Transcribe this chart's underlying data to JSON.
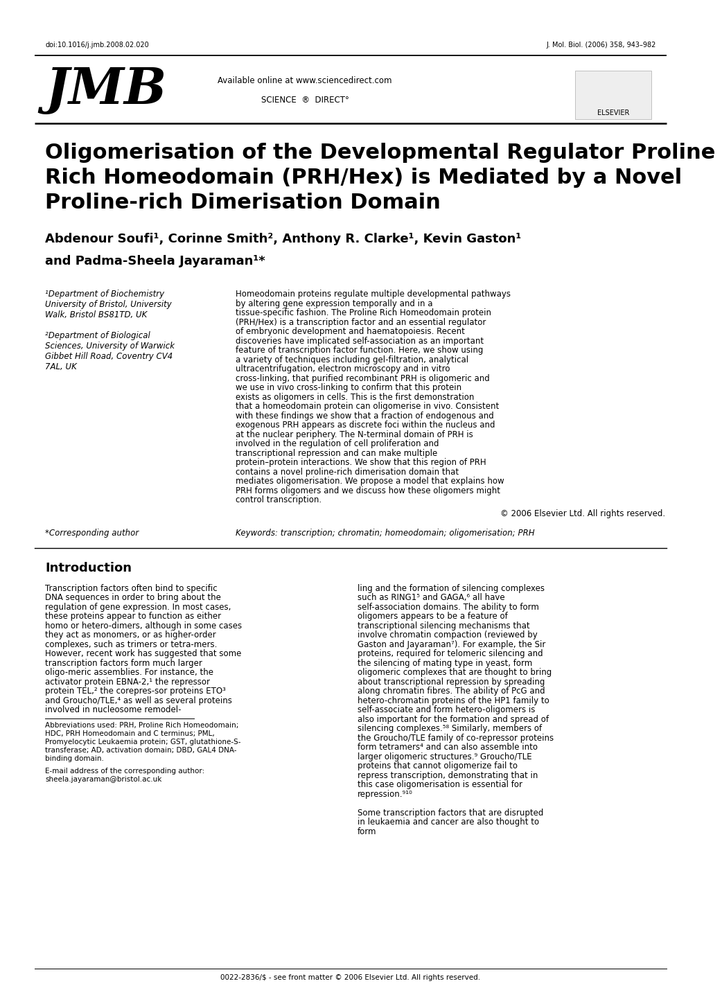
{
  "page_width": 9.92,
  "page_height": 14.03,
  "bg_color": "#ffffff",
  "doi_text": "doi:10.1016/j.jmb.2008.02.020",
  "journal_ref": "J. Mol. Biol. (2006) 358, 943–982",
  "jmb_logo": "JMB",
  "available_online": "Available online at www.sciencedirect.com",
  "science_direct": "SCIENCE  ®  DIRECT°",
  "elsevier_text": "ELSEVIER",
  "title_line1": "Oligomerisation of the Developmental Regulator Proline",
  "title_line2": "Rich Homeodomain (PRH/Hex) is Mediated by a Novel",
  "title_line3": "Proline-rich Dimerisation Domain",
  "authors_line1": "Abdenour Soufi¹, Corinne Smith², Anthony R. Clarke¹, Kevin Gaston¹",
  "authors_line2": "and Padma-Sheela Jayaraman¹*",
  "affil1_lines": [
    "¹Department of Biochemistry",
    "University of Bristol, University",
    "Walk, Bristol BS81TD, UK"
  ],
  "affil2_lines": [
    "²Department of Biological",
    "Sciences, University of Warwick",
    "Gibbet Hill Road, Coventry CV4",
    "7AL, UK"
  ],
  "abstract_text": "Homeodomain proteins regulate multiple developmental pathways by altering gene expression temporally and in a tissue-specific fashion. The Proline Rich Homeodomain protein (PRH/Hex) is a transcription factor and an essential regulator of embryonic development and haematopoiesis. Recent discoveries have implicated self-association as an important feature of transcription factor function. Here, we show using a variety of techniques including gel-filtration, analytical ultracentrifugation, electron microscopy and in vitro cross-linking, that purified recombinant PRH is oligomeric and we use in vivo cross-linking to confirm that this protein exists as oligomers in cells. This is the first demonstration that a homeodomain protein can oligomerise in vivo. Consistent with these findings we show that a fraction of endogenous and exogenous PRH appears as discrete foci within the nucleus and at the nuclear periphery. The N-terminal domain of PRH is involved in the regulation of cell proliferation and transcriptional repression and can make multiple protein–protein interactions. We show that this region of PRH contains a novel proline-rich dimerisation domain that mediates oligomerisation. We propose a model that explains how PRH forms oligomers and we discuss how these oligomers might control transcription.",
  "copyright": "© 2006 Elsevier Ltd. All rights reserved.",
  "corresponding_author": "*Corresponding author",
  "keywords": "Keywords: transcription; chromatin; homeodomain; oligomerisation; PRH",
  "intro_heading": "Introduction",
  "intro_col1_text": "Transcription factors often bind to specific DNA sequences in order to bring about the regulation of gene expression. In most cases, these proteins appear to function as either homo or hetero-dimers, although in some cases they act as monomers, or as higher-order complexes, such as trimers or tetra-mers. However, recent work has suggested that some transcription factors form much larger oligo-meric assemblies. For instance, the activator protein EBNA-2,¹ the repressor protein TEL,² the corepres-sor proteins ETO³ and Groucho/TLE,⁴ as well as several proteins involved in nucleosome remodel-",
  "intro_col2_text": "ling and the formation of silencing complexes such as RING1⁵ and GAGA,⁶ all have self-association domains. The ability to form oligomers appears to be a feature of transcriptional silencing mechanisms that involve chromatin compaction (reviewed by Gaston and Jayaraman⁷). For example, the Sir proteins, required for telomeric silencing and the silencing of mating type in yeast, form oligomeric complexes that are thought to bring about transcriptional repression by spreading along chromatin fibres. The ability of PcG and hetero-chromatin proteins of the HP1 family to self-associate and form hetero-oligomers is also important for the formation and spread of silencing complexes.⁵⁸ Similarly, members of the Groucho/TLE family of co-repressor proteins form tetramers⁴ and can also assemble into larger oligomeric structures.⁹ Groucho/TLE proteins that cannot oligomerize fail to repress transcription, demonstrating that in this case oligomerisation is essential for repression.⁹¹⁰",
  "intro_col2_last": "    Some transcription factors that are disrupted in leukaemia and cancer are also thought to form",
  "footnote_abbrev_lines": [
    "Abbreviations used: PRH, Proline Rich Homeodomain;",
    "HDC, PRH Homeodomain and C terminus; PML,",
    "Promyelocytic Leukaemia protein; GST, glutathione-S-",
    "transferase; AD, activation domain; DBD, GAL4 DNA-",
    "binding domain."
  ],
  "footnote_email_lines": [
    "E-mail address of the corresponding author:",
    "sheela.jayaraman@bristol.ac.uk"
  ],
  "bottom_text": "0022-2836/$ - see front matter © 2006 Elsevier Ltd. All rights reserved."
}
